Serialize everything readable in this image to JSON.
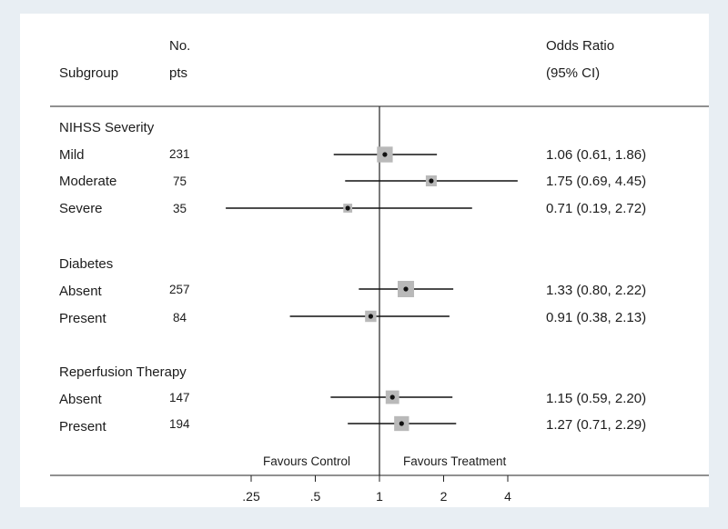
{
  "header": {
    "subgroup": "Subgroup",
    "no_line1": "No.",
    "no_line2": "pts",
    "or_line1": "Odds Ratio",
    "or_line2": "(95% CI)"
  },
  "chart_data": {
    "type": "forest",
    "x_scale": "log",
    "reference_line": 1,
    "xticks": [
      0.25,
      0.5,
      1,
      2,
      4
    ],
    "xtick_labels": [
      ".25",
      ".5",
      "1",
      "2",
      "4"
    ],
    "favours_left": "Favours Control",
    "favours_right": "Favours Treatment",
    "groups": [
      {
        "name": "NIHSS Severity",
        "rows": [
          {
            "label": "Mild",
            "n": "231",
            "or": 1.06,
            "lo": 0.61,
            "hi": 1.86,
            "or_text": "1.06 (0.61, 1.86)",
            "weight": 231
          },
          {
            "label": "Moderate",
            "n": "75",
            "or": 1.75,
            "lo": 0.69,
            "hi": 4.45,
            "or_text": "1.75 (0.69, 4.45)",
            "weight": 75
          },
          {
            "label": "Severe",
            "n": "35",
            "or": 0.71,
            "lo": 0.19,
            "hi": 2.72,
            "or_text": "0.71 (0.19, 2.72)",
            "weight": 35
          }
        ]
      },
      {
        "name": "Diabetes",
        "rows": [
          {
            "label": "Absent",
            "n": "257",
            "or": 1.33,
            "lo": 0.8,
            "hi": 2.22,
            "or_text": "1.33 (0.80, 2.22)",
            "weight": 257
          },
          {
            "label": "Present",
            "n": "84",
            "or": 0.91,
            "lo": 0.38,
            "hi": 2.13,
            "or_text": "0.91 (0.38, 2.13)",
            "weight": 84
          }
        ]
      },
      {
        "name": "Reperfusion Therapy",
        "rows": [
          {
            "label": "Absent",
            "n": "147",
            "or": 1.15,
            "lo": 0.59,
            "hi": 2.2,
            "or_text": "1.15 (0.59, 2.20)",
            "weight": 147
          },
          {
            "label": "Present",
            "n": "194",
            "or": 1.27,
            "lo": 0.71,
            "hi": 2.29,
            "or_text": "1.27 (0.71, 2.29)",
            "weight": 194
          }
        ]
      }
    ]
  }
}
